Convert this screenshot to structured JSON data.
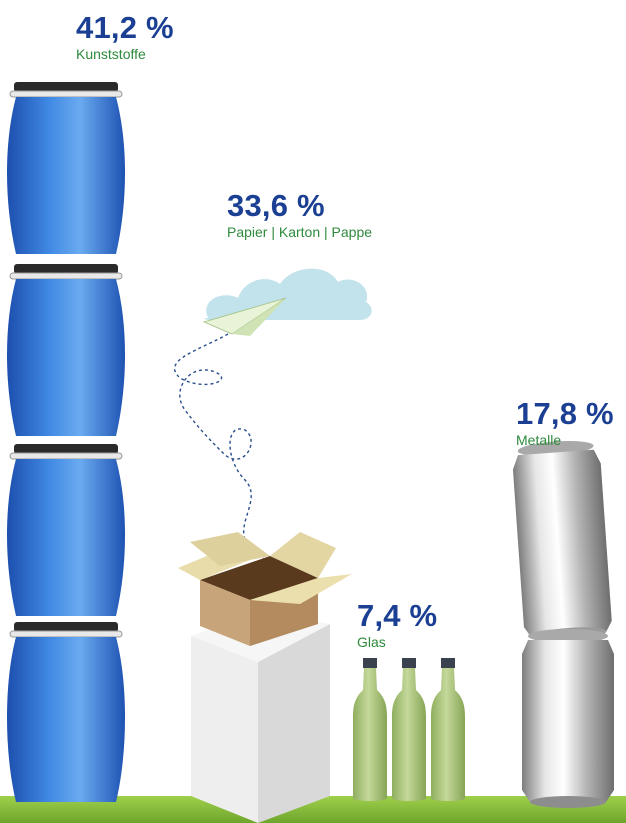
{
  "colors": {
    "percent": "#1b3f93",
    "category": "#2e8a3c",
    "ground": "#8ac43f",
    "barrel": "#2f6fd3",
    "box": "#c9a77c",
    "bottle": "#a9c27a",
    "can": "#c8c8c8",
    "cloud": "#bfe0ea"
  },
  "chart_data": {
    "type": "bar",
    "categories": [
      "Kunststoffe",
      "Papier | Karton | Pappe",
      "Glas",
      "Metalle"
    ],
    "values": [
      41.2,
      33.6,
      7.4,
      17.8
    ],
    "labels": [
      "41,2 %",
      "33,6 %",
      "7,4 %",
      "17,8 %"
    ],
    "icons": [
      "barrel-icon",
      "cardboard-box-icon",
      "glass-bottle-icon",
      "metal-can-icon"
    ]
  },
  "labels": {
    "kunststoffe": {
      "value": "41,2 %",
      "name": "Kunststoffe"
    },
    "papier": {
      "value": "33,6 %",
      "name": "Papier | Karton | Pappe"
    },
    "glas": {
      "value": "7,4 %",
      "name": "Glas"
    },
    "metalle": {
      "value": "17,8 %",
      "name": "Metalle"
    }
  }
}
